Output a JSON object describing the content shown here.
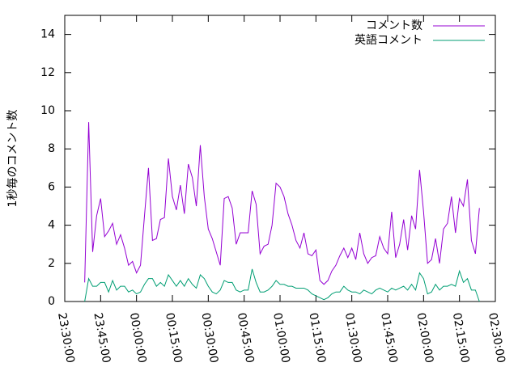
{
  "chart_data": {
    "type": "line",
    "ylabel": "1秒毎のコメント数",
    "x": [
      "23:38:20",
      "23:40:00",
      "23:41:40",
      "23:43:20",
      "23:45:00",
      "23:46:40",
      "23:48:20",
      "23:50:00",
      "23:51:40",
      "23:53:20",
      "23:55:00",
      "23:56:40",
      "23:58:20",
      "00:00:00",
      "00:01:40",
      "00:03:20",
      "00:05:00",
      "00:06:40",
      "00:08:20",
      "00:10:00",
      "00:11:40",
      "00:13:20",
      "00:15:00",
      "00:16:40",
      "00:18:20",
      "00:20:00",
      "00:21:40",
      "00:23:20",
      "00:25:00",
      "00:26:40",
      "00:28:20",
      "00:30:00",
      "00:31:40",
      "00:33:20",
      "00:35:00",
      "00:36:40",
      "00:38:20",
      "00:40:00",
      "00:41:40",
      "00:43:20",
      "00:45:00",
      "00:46:40",
      "00:48:20",
      "00:50:00",
      "00:51:40",
      "00:53:20",
      "00:55:00",
      "00:56:40",
      "00:58:20",
      "01:00:00",
      "01:01:40",
      "01:03:20",
      "01:05:00",
      "01:06:40",
      "01:08:20",
      "01:10:00",
      "01:11:40",
      "01:13:20",
      "01:15:00",
      "01:16:40",
      "01:18:20",
      "01:20:00",
      "01:21:40",
      "01:23:20",
      "01:25:00",
      "01:26:40",
      "01:28:20",
      "01:30:00",
      "01:31:40",
      "01:33:20",
      "01:35:00",
      "01:36:40",
      "01:38:20",
      "01:40:00",
      "01:41:40",
      "01:43:20",
      "01:45:00",
      "01:46:40",
      "01:48:20",
      "01:50:00",
      "01:51:40",
      "01:53:20",
      "01:55:00",
      "01:56:40",
      "01:58:20",
      "02:00:00",
      "02:01:40",
      "02:03:20",
      "02:05:00",
      "02:06:40",
      "02:08:20",
      "02:10:00",
      "02:11:40",
      "02:13:20",
      "02:15:00",
      "02:16:40",
      "02:18:20",
      "02:20:00",
      "02:21:40",
      "02:23:20"
    ],
    "series": [
      {
        "name": "コメント数",
        "color": "#9400d3",
        "values": [
          1.0,
          9.4,
          2.6,
          4.5,
          5.4,
          3.4,
          3.7,
          4.1,
          3.0,
          3.5,
          2.8,
          1.9,
          2.1,
          1.5,
          1.9,
          4.5,
          7.0,
          3.2,
          3.3,
          4.3,
          4.4,
          7.5,
          5.5,
          4.8,
          6.1,
          4.6,
          7.2,
          6.5,
          5.0,
          8.2,
          5.5,
          3.8,
          3.3,
          2.6,
          1.9,
          5.4,
          5.5,
          4.9,
          3.0,
          3.6,
          3.6,
          3.6,
          5.8,
          5.1,
          2.5,
          2.9,
          3.0,
          4.0,
          6.2,
          6.0,
          5.5,
          4.6,
          4.0,
          3.2,
          2.8,
          3.6,
          2.5,
          2.4,
          2.7,
          1.1,
          0.9,
          1.1,
          1.6,
          1.9,
          2.4,
          2.8,
          2.3,
          2.8,
          2.2,
          3.6,
          2.5,
          2.0,
          2.3,
          2.4,
          3.4,
          2.8,
          2.5,
          4.7,
          2.3,
          3.0,
          4.3,
          2.7,
          4.5,
          3.8,
          6.9,
          4.7,
          2.0,
          2.2,
          3.3,
          2.0,
          3.8,
          4.1,
          5.5,
          3.6,
          5.4,
          5.0,
          6.4,
          3.2,
          2.5,
          4.9
        ]
      },
      {
        "name": "英語コメント",
        "color": "#009e73",
        "values": [
          0,
          1.2,
          0.8,
          0.8,
          1.0,
          1.0,
          0.5,
          1.1,
          0.6,
          0.8,
          0.8,
          0.5,
          0.6,
          0.4,
          0.5,
          0.9,
          1.2,
          1.2,
          0.8,
          1.0,
          0.8,
          1.4,
          1.1,
          0.8,
          1.1,
          0.8,
          1.2,
          0.9,
          0.7,
          1.4,
          1.2,
          0.8,
          0.5,
          0.4,
          0.6,
          1.1,
          1.0,
          1.0,
          0.6,
          0.5,
          0.6,
          0.6,
          1.7,
          1.0,
          0.5,
          0.5,
          0.6,
          0.8,
          1.1,
          0.9,
          0.9,
          0.8,
          0.8,
          0.7,
          0.7,
          0.7,
          0.6,
          0.4,
          0.3,
          0.2,
          0.1,
          0.2,
          0.4,
          0.5,
          0.5,
          0.8,
          0.6,
          0.5,
          0.5,
          0.4,
          0.6,
          0.5,
          0.4,
          0.6,
          0.7,
          0.6,
          0.5,
          0.7,
          0.6,
          0.7,
          0.8,
          0.6,
          0.9,
          0.6,
          1.5,
          1.2,
          0.4,
          0.5,
          0.9,
          0.6,
          0.8,
          0.8,
          0.9,
          0.8,
          1.6,
          1.0,
          1.2,
          0.6,
          0.6,
          0
        ]
      }
    ],
    "xlim": [
      "23:30:00",
      "02:30:00"
    ],
    "xticks": [
      "23:30:00",
      "23:45:00",
      "00:00:00",
      "00:15:00",
      "00:30:00",
      "00:45:00",
      "01:00:00",
      "01:15:00",
      "01:30:00",
      "01:45:00",
      "02:00:00",
      "02:15:00",
      "02:30:00"
    ],
    "ylim": [
      0,
      15
    ],
    "yticks": [
      0,
      2,
      4,
      6,
      8,
      10,
      12,
      14
    ],
    "grid": false,
    "legend": "top-right"
  }
}
